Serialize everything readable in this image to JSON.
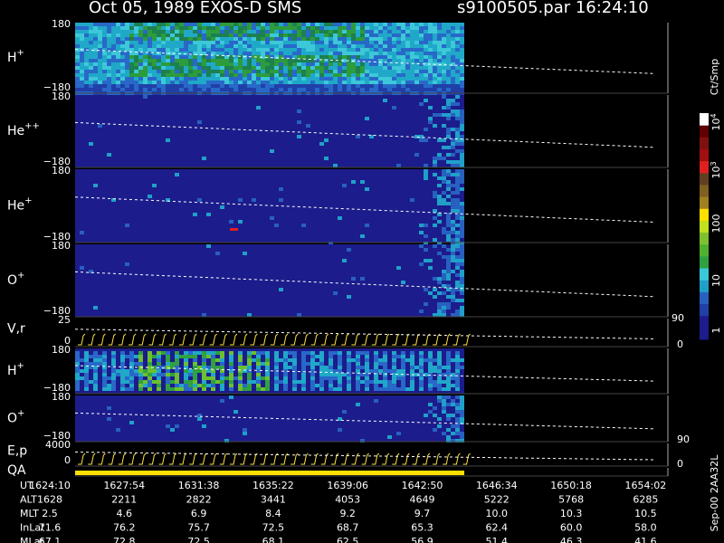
{
  "header": {
    "title": "Oct 05, 1989   EXOS-D SMS",
    "file": "s9100505.par  16:24:10"
  },
  "panels": [
    {
      "label": "H",
      "sup": "+",
      "top": "180",
      "bottom": "−180"
    },
    {
      "label": "He",
      "sup": "++",
      "top": "180",
      "bottom": "−180"
    },
    {
      "label": "He",
      "sup": "+",
      "top": "180",
      "bottom": "−180"
    },
    {
      "label": "O",
      "sup": "+",
      "top": "180",
      "bottom": "−180"
    },
    {
      "label": "V,r",
      "top": "25",
      "bottom": "0",
      "right_top": "90",
      "right_bottom": "0"
    },
    {
      "label": "H",
      "sup": "+",
      "top": "180",
      "bottom": "−180"
    },
    {
      "label": "O",
      "sup": "+",
      "top": "180",
      "bottom": "−180",
      "right_bottom": "90"
    },
    {
      "label": "E,p",
      "top": "4000",
      "bottom": "0",
      "right_bottom": "0"
    },
    {
      "label": "QA"
    }
  ],
  "colorbar": {
    "unit": "Ct/Smp",
    "labels": [
      {
        "text": "1"
      },
      {
        "text": "10"
      },
      {
        "text": "100"
      },
      {
        "text": "10",
        "sup": "3"
      },
      {
        "text": "10",
        "sup": "4"
      }
    ]
  },
  "footer": {
    "code": "Sep-00  2AA32L"
  },
  "table": {
    "rows": [
      {
        "name": "UT",
        "cells": [
          "1624:10",
          "1627:54",
          "1631:38",
          "1635:22",
          "1639:06",
          "1642:50",
          "1646:34",
          "1650:18",
          "1654:02"
        ]
      },
      {
        "name": "ALT",
        "cells": [
          "1628",
          "2211",
          "2822",
          "3441",
          "4053",
          "4649",
          "5222",
          "5768",
          "6285"
        ]
      },
      {
        "name": "MLT",
        "cells": [
          "2.5",
          "4.6",
          "6.9",
          "8.4",
          "9.2",
          "9.7",
          "10.0",
          "10.3",
          "10.5"
        ]
      },
      {
        "name": "InLat",
        "cells": [
          "71.6",
          "76.2",
          "75.7",
          "72.5",
          "68.7",
          "65.3",
          "62.4",
          "60.0",
          "58.0"
        ]
      },
      {
        "name": "MLat",
        "cells": [
          "67.1",
          "72.8",
          "72.5",
          "68.1",
          "62.5",
          "56.9",
          "51.4",
          "46.3",
          "41.6"
        ]
      }
    ]
  }
}
